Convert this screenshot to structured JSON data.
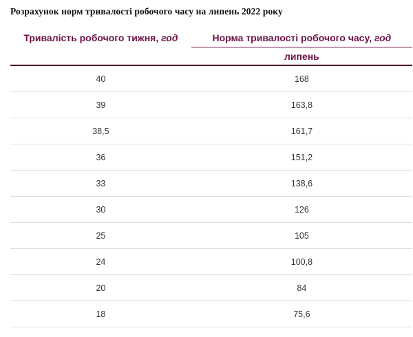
{
  "title": "Розрахунок норм тривалості робочого часу на липень 2022 року",
  "table": {
    "col1_header_text": "Тривалість робочого тижня, ",
    "col1_header_unit": "год",
    "col2_header_text": "Норма тривалості робочого часу, ",
    "col2_header_unit": "год",
    "col2_subheader": "липень",
    "rows": [
      {
        "week": "40",
        "norm": "168"
      },
      {
        "week": "39",
        "norm": "163,8"
      },
      {
        "week": "38,5",
        "norm": "161,7"
      },
      {
        "week": "36",
        "norm": "151,2"
      },
      {
        "week": "33",
        "norm": "138,6"
      },
      {
        "week": "30",
        "norm": "126"
      },
      {
        "week": "25",
        "norm": "105"
      },
      {
        "week": "24",
        "norm": "100,8"
      },
      {
        "week": "20",
        "norm": "84"
      },
      {
        "week": "18",
        "norm": "75,6"
      }
    ]
  },
  "colors": {
    "accent": "#6e1246",
    "heavy_rule": "#4b0e2e",
    "row_divider": "#dddddd",
    "data_text": "#333333",
    "title_text": "#111111"
  }
}
